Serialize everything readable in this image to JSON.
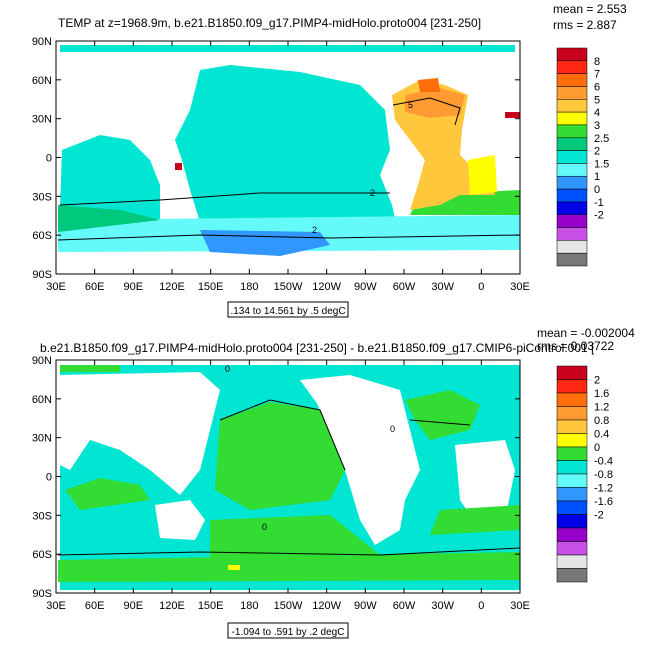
{
  "chart_data": [
    {
      "type": "heatmap",
      "title": "TEMP at z=1968.9m, b.e21.B1850.f09_g17.PIMP4-midHolo.proto004 [231-250]",
      "stats": [
        "mean = 2.553",
        "rms = 2.887"
      ],
      "range_label": ".134 to 14.561 by .5 degC",
      "x_ticks": [
        "30E",
        "60E",
        "90E",
        "120E",
        "150E",
        "180",
        "150W",
        "120W",
        "90W",
        "60W",
        "30W",
        "0",
        "30E"
      ],
      "y_ticks": [
        "90N",
        "60N",
        "30N",
        "0",
        "30S",
        "60S",
        "90S"
      ],
      "colorbar_labels": [
        "8",
        "7",
        "6",
        "5",
        "4",
        "3",
        "2.5",
        "2",
        "1.5",
        "1",
        "0",
        "-1",
        "-2"
      ],
      "colorbar_colors": [
        "#c8001e",
        "#ff2814",
        "#ff6e0a",
        "#ff9b32",
        "#ffc83c",
        "#ffff00",
        "#32dc32",
        "#00c87d",
        "#00e6d2",
        "#64fafa",
        "#3296ff",
        "#0050ff",
        "#0000e6",
        "#9600c8",
        "#c850e6",
        "#e6e6e6",
        "#787878"
      ],
      "contour_labels": [
        "2",
        "5",
        "2"
      ]
    },
    {
      "type": "heatmap",
      "title": "b.e21.B1850.f09_g17.PIMP4-midHolo.proto004 [231-250] - b.e21.B1850.f09_g17.CMIP6-piControl.001 [",
      "stats": [
        "mean = -0.002004",
        "rms = 0.03722"
      ],
      "range_label": "-1.094 to .591 by .2 degC",
      "x_ticks": [
        "30E",
        "60E",
        "90E",
        "120E",
        "150E",
        "180",
        "150W",
        "120W",
        "90W",
        "60W",
        "30W",
        "0",
        "30E"
      ],
      "y_ticks": [
        "90N",
        "60N",
        "30N",
        "0",
        "30S",
        "60S",
        "90S"
      ],
      "colorbar_labels": [
        "2",
        "1.6",
        "1.2",
        "0.8",
        "0.4",
        "0",
        "-0.4",
        "-0.8",
        "-1.2",
        "-1.6",
        "-2"
      ],
      "colorbar_colors": [
        "#c8001e",
        "#ff2814",
        "#ff6e0a",
        "#ff9b32",
        "#ffc83c",
        "#ffff00",
        "#32dc32",
        "#00e6d2",
        "#64fafa",
        "#3296ff",
        "#0050ff",
        "#0000e6",
        "#9600c8",
        "#c850e6",
        "#e6e6e6",
        "#787878"
      ],
      "contour_labels": [
        "0",
        "0",
        "0"
      ]
    }
  ]
}
